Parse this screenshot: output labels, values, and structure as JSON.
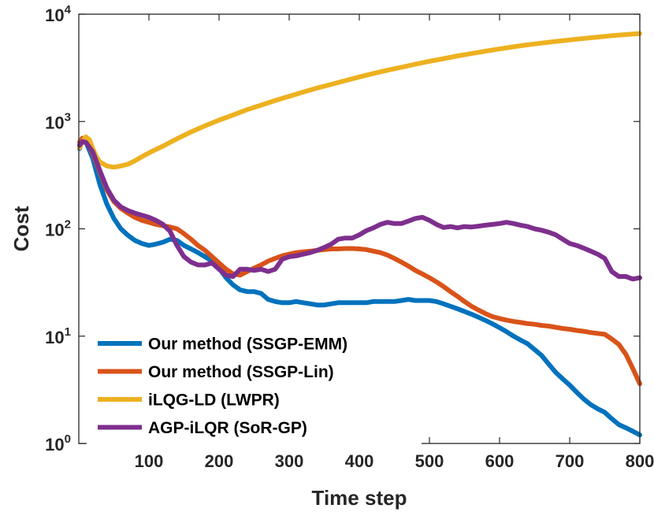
{
  "chart_data": {
    "type": "line",
    "xlabel": "Time step",
    "ylabel": "Cost",
    "xlim": [
      0,
      800
    ],
    "ylim": [
      1,
      10000
    ],
    "yscale": "log",
    "grid": false,
    "legend_position": "bottom-left",
    "xticks": [
      100,
      200,
      300,
      400,
      500,
      600,
      700,
      800
    ],
    "xtick_labels": [
      "100",
      "200",
      "300",
      "400",
      "500",
      "600",
      "700",
      "800"
    ],
    "yticks": [
      1,
      10,
      100,
      1000,
      10000
    ],
    "ytick_labels": [
      {
        "base": "10",
        "exp": "0"
      },
      {
        "base": "10",
        "exp": "1"
      },
      {
        "base": "10",
        "exp": "2"
      },
      {
        "base": "10",
        "exp": "3"
      },
      {
        "base": "10",
        "exp": "4"
      }
    ],
    "series": [
      {
        "name": "Our method (SSGP-EMM)",
        "color": "#0072BD",
        "points": [
          [
            1,
            560
          ],
          [
            5,
            680
          ],
          [
            10,
            650
          ],
          [
            20,
            450
          ],
          [
            30,
            260
          ],
          [
            40,
            170
          ],
          [
            50,
            125
          ],
          [
            60,
            100
          ],
          [
            70,
            87
          ],
          [
            80,
            78
          ],
          [
            90,
            73
          ],
          [
            100,
            70
          ],
          [
            110,
            72
          ],
          [
            120,
            75
          ],
          [
            130,
            80
          ],
          [
            140,
            78
          ],
          [
            150,
            70
          ],
          [
            160,
            65
          ],
          [
            170,
            60
          ],
          [
            180,
            55
          ],
          [
            190,
            50
          ],
          [
            200,
            43
          ],
          [
            210,
            35
          ],
          [
            220,
            30
          ],
          [
            230,
            27
          ],
          [
            240,
            26
          ],
          [
            250,
            26
          ],
          [
            260,
            25
          ],
          [
            270,
            22
          ],
          [
            280,
            21
          ],
          [
            290,
            20.5
          ],
          [
            300,
            20.5
          ],
          [
            310,
            21
          ],
          [
            320,
            20.5
          ],
          [
            330,
            20
          ],
          [
            340,
            19.5
          ],
          [
            350,
            19.5
          ],
          [
            360,
            20
          ],
          [
            370,
            20.5
          ],
          [
            380,
            20.5
          ],
          [
            390,
            20.5
          ],
          [
            400,
            20.5
          ],
          [
            410,
            20.5
          ],
          [
            420,
            21
          ],
          [
            430,
            21
          ],
          [
            440,
            21
          ],
          [
            450,
            21
          ],
          [
            460,
            21.5
          ],
          [
            470,
            22
          ],
          [
            480,
            21.5
          ],
          [
            490,
            21.5
          ],
          [
            500,
            21.5
          ],
          [
            510,
            21
          ],
          [
            520,
            20
          ],
          [
            530,
            19
          ],
          [
            540,
            18
          ],
          [
            550,
            17
          ],
          [
            560,
            16
          ],
          [
            570,
            15
          ],
          [
            580,
            14
          ],
          [
            590,
            13
          ],
          [
            600,
            12
          ],
          [
            610,
            11
          ],
          [
            620,
            10
          ],
          [
            630,
            9.2
          ],
          [
            640,
            8.5
          ],
          [
            650,
            7.5
          ],
          [
            660,
            6.6
          ],
          [
            670,
            5.5
          ],
          [
            680,
            4.6
          ],
          [
            690,
            4
          ],
          [
            700,
            3.5
          ],
          [
            710,
            3
          ],
          [
            720,
            2.6
          ],
          [
            730,
            2.3
          ],
          [
            740,
            2.1
          ],
          [
            750,
            1.95
          ],
          [
            760,
            1.7
          ],
          [
            770,
            1.5
          ],
          [
            780,
            1.4
          ],
          [
            790,
            1.3
          ],
          [
            800,
            1.2
          ]
        ]
      },
      {
        "name": "Our method (SSGP-Lin)",
        "color": "#D95319",
        "points": [
          [
            1,
            640
          ],
          [
            5,
            700
          ],
          [
            10,
            670
          ],
          [
            20,
            500
          ],
          [
            30,
            340
          ],
          [
            40,
            230
          ],
          [
            50,
            180
          ],
          [
            60,
            155
          ],
          [
            70,
            140
          ],
          [
            80,
            128
          ],
          [
            90,
            120
          ],
          [
            100,
            115
          ],
          [
            110,
            110
          ],
          [
            120,
            107
          ],
          [
            130,
            104
          ],
          [
            140,
            100
          ],
          [
            150,
            90
          ],
          [
            160,
            80
          ],
          [
            170,
            70
          ],
          [
            180,
            63
          ],
          [
            190,
            55
          ],
          [
            200,
            48
          ],
          [
            210,
            42
          ],
          [
            220,
            38
          ],
          [
            230,
            37
          ],
          [
            240,
            40
          ],
          [
            250,
            43
          ],
          [
            260,
            46
          ],
          [
            270,
            50
          ],
          [
            280,
            53
          ],
          [
            290,
            56
          ],
          [
            300,
            58
          ],
          [
            310,
            60
          ],
          [
            320,
            61
          ],
          [
            330,
            62
          ],
          [
            340,
            63
          ],
          [
            350,
            64
          ],
          [
            360,
            65
          ],
          [
            370,
            65
          ],
          [
            380,
            65.5
          ],
          [
            390,
            65.5
          ],
          [
            400,
            65
          ],
          [
            410,
            64
          ],
          [
            420,
            62
          ],
          [
            430,
            60
          ],
          [
            440,
            57
          ],
          [
            450,
            53
          ],
          [
            460,
            49
          ],
          [
            470,
            45
          ],
          [
            480,
            41
          ],
          [
            490,
            38
          ],
          [
            500,
            35
          ],
          [
            510,
            32
          ],
          [
            520,
            29
          ],
          [
            530,
            26
          ],
          [
            540,
            23.5
          ],
          [
            550,
            21
          ],
          [
            560,
            19
          ],
          [
            570,
            17.5
          ],
          [
            580,
            16.2
          ],
          [
            590,
            15.2
          ],
          [
            600,
            14.6
          ],
          [
            610,
            14.1
          ],
          [
            620,
            13.7
          ],
          [
            630,
            13.4
          ],
          [
            640,
            13.1
          ],
          [
            650,
            12.9
          ],
          [
            660,
            12.6
          ],
          [
            670,
            12.4
          ],
          [
            680,
            12.1
          ],
          [
            690,
            11.8
          ],
          [
            700,
            11.6
          ],
          [
            710,
            11.3
          ],
          [
            720,
            11.1
          ],
          [
            730,
            10.8
          ],
          [
            740,
            10.6
          ],
          [
            750,
            10.4
          ],
          [
            760,
            9.4
          ],
          [
            770,
            8.4
          ],
          [
            780,
            6.8
          ],
          [
            790,
            5
          ],
          [
            800,
            3.6
          ]
        ]
      },
      {
        "name": "iLQG-LD (LWPR)",
        "color": "#EDB120",
        "points": [
          [
            1,
            570
          ],
          [
            5,
            650
          ],
          [
            10,
            720
          ],
          [
            15,
            680
          ],
          [
            20,
            560
          ],
          [
            25,
            470
          ],
          [
            30,
            420
          ],
          [
            40,
            385
          ],
          [
            50,
            375
          ],
          [
            60,
            385
          ],
          [
            70,
            400
          ],
          [
            80,
            430
          ],
          [
            90,
            470
          ],
          [
            100,
            510
          ],
          [
            120,
            590
          ],
          [
            140,
            690
          ],
          [
            160,
            800
          ],
          [
            180,
            910
          ],
          [
            200,
            1030
          ],
          [
            220,
            1150
          ],
          [
            240,
            1290
          ],
          [
            260,
            1420
          ],
          [
            280,
            1570
          ],
          [
            300,
            1720
          ],
          [
            320,
            1880
          ],
          [
            340,
            2050
          ],
          [
            360,
            2220
          ],
          [
            380,
            2400
          ],
          [
            400,
            2600
          ],
          [
            420,
            2800
          ],
          [
            440,
            3000
          ],
          [
            460,
            3200
          ],
          [
            480,
            3420
          ],
          [
            500,
            3640
          ],
          [
            520,
            3850
          ],
          [
            540,
            4080
          ],
          [
            560,
            4300
          ],
          [
            580,
            4520
          ],
          [
            600,
            4750
          ],
          [
            620,
            4970
          ],
          [
            640,
            5180
          ],
          [
            660,
            5380
          ],
          [
            680,
            5570
          ],
          [
            700,
            5750
          ],
          [
            720,
            5940
          ],
          [
            740,
            6120
          ],
          [
            760,
            6300
          ],
          [
            780,
            6450
          ],
          [
            800,
            6600
          ]
        ]
      },
      {
        "name": "AGP-iLQR (SoR-GP)",
        "color": "#7E2F8E",
        "points": [
          [
            1,
            600
          ],
          [
            5,
            650
          ],
          [
            10,
            640
          ],
          [
            20,
            520
          ],
          [
            30,
            350
          ],
          [
            40,
            240
          ],
          [
            50,
            185
          ],
          [
            60,
            160
          ],
          [
            70,
            148
          ],
          [
            80,
            140
          ],
          [
            90,
            134
          ],
          [
            100,
            128
          ],
          [
            110,
            120
          ],
          [
            120,
            110
          ],
          [
            130,
            95
          ],
          [
            140,
            70
          ],
          [
            150,
            55
          ],
          [
            160,
            49
          ],
          [
            170,
            46
          ],
          [
            180,
            46
          ],
          [
            190,
            48
          ],
          [
            200,
            42
          ],
          [
            210,
            37
          ],
          [
            220,
            36
          ],
          [
            230,
            42
          ],
          [
            240,
            42
          ],
          [
            250,
            41
          ],
          [
            260,
            42
          ],
          [
            270,
            40
          ],
          [
            280,
            42
          ],
          [
            290,
            52
          ],
          [
            300,
            55
          ],
          [
            310,
            56
          ],
          [
            320,
            58
          ],
          [
            330,
            60
          ],
          [
            340,
            63
          ],
          [
            350,
            67
          ],
          [
            360,
            72
          ],
          [
            370,
            80
          ],
          [
            380,
            82
          ],
          [
            390,
            82
          ],
          [
            400,
            88
          ],
          [
            410,
            96
          ],
          [
            420,
            102
          ],
          [
            430,
            110
          ],
          [
            440,
            115
          ],
          [
            450,
            112
          ],
          [
            460,
            112
          ],
          [
            470,
            118
          ],
          [
            480,
            125
          ],
          [
            490,
            128
          ],
          [
            500,
            120
          ],
          [
            510,
            110
          ],
          [
            520,
            103
          ],
          [
            530,
            105
          ],
          [
            540,
            102
          ],
          [
            550,
            105
          ],
          [
            560,
            104
          ],
          [
            570,
            106
          ],
          [
            580,
            108
          ],
          [
            590,
            110
          ],
          [
            600,
            112
          ],
          [
            610,
            115
          ],
          [
            620,
            112
          ],
          [
            630,
            108
          ],
          [
            640,
            105
          ],
          [
            650,
            100
          ],
          [
            660,
            97
          ],
          [
            670,
            93
          ],
          [
            680,
            88
          ],
          [
            690,
            80
          ],
          [
            700,
            73
          ],
          [
            710,
            70
          ],
          [
            720,
            66
          ],
          [
            730,
            62
          ],
          [
            740,
            58
          ],
          [
            750,
            53
          ],
          [
            760,
            40
          ],
          [
            770,
            36
          ],
          [
            780,
            36
          ],
          [
            790,
            34
          ],
          [
            800,
            35
          ]
        ]
      }
    ]
  }
}
